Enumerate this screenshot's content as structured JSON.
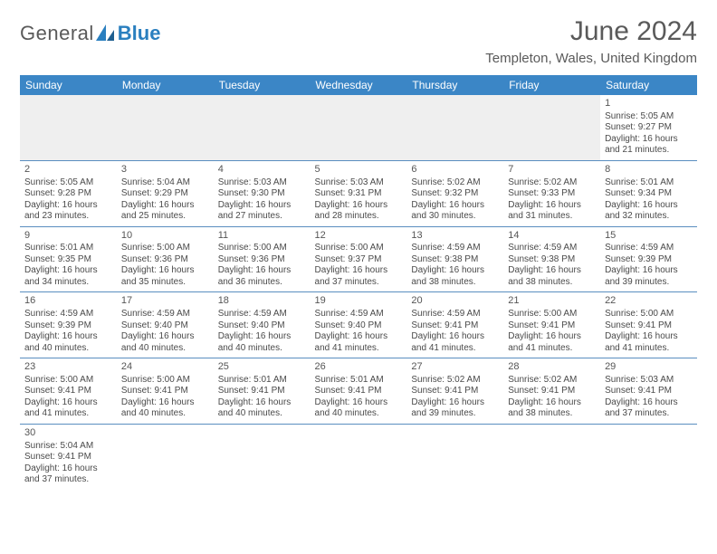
{
  "brand": {
    "part1": "General",
    "part2": "Blue"
  },
  "header": {
    "title": "June 2024",
    "location": "Templeton, Wales, United Kingdom"
  },
  "calendar": {
    "weekdays": [
      "Sunday",
      "Monday",
      "Tuesday",
      "Wednesday",
      "Thursday",
      "Friday",
      "Saturday"
    ],
    "header_bg": "#3b86c6",
    "header_fg": "#ffffff",
    "divider_color": "#5a8ec0",
    "empty_bg": "#efefef",
    "body_font_size": 10,
    "first_weekday_index": 6,
    "days_in_month": 30,
    "days": [
      {
        "n": 1,
        "sunrise": "5:05 AM",
        "sunset": "9:27 PM",
        "daylight": "16 hours and 21 minutes."
      },
      {
        "n": 2,
        "sunrise": "5:05 AM",
        "sunset": "9:28 PM",
        "daylight": "16 hours and 23 minutes."
      },
      {
        "n": 3,
        "sunrise": "5:04 AM",
        "sunset": "9:29 PM",
        "daylight": "16 hours and 25 minutes."
      },
      {
        "n": 4,
        "sunrise": "5:03 AM",
        "sunset": "9:30 PM",
        "daylight": "16 hours and 27 minutes."
      },
      {
        "n": 5,
        "sunrise": "5:03 AM",
        "sunset": "9:31 PM",
        "daylight": "16 hours and 28 minutes."
      },
      {
        "n": 6,
        "sunrise": "5:02 AM",
        "sunset": "9:32 PM",
        "daylight": "16 hours and 30 minutes."
      },
      {
        "n": 7,
        "sunrise": "5:02 AM",
        "sunset": "9:33 PM",
        "daylight": "16 hours and 31 minutes."
      },
      {
        "n": 8,
        "sunrise": "5:01 AM",
        "sunset": "9:34 PM",
        "daylight": "16 hours and 32 minutes."
      },
      {
        "n": 9,
        "sunrise": "5:01 AM",
        "sunset": "9:35 PM",
        "daylight": "16 hours and 34 minutes."
      },
      {
        "n": 10,
        "sunrise": "5:00 AM",
        "sunset": "9:36 PM",
        "daylight": "16 hours and 35 minutes."
      },
      {
        "n": 11,
        "sunrise": "5:00 AM",
        "sunset": "9:36 PM",
        "daylight": "16 hours and 36 minutes."
      },
      {
        "n": 12,
        "sunrise": "5:00 AM",
        "sunset": "9:37 PM",
        "daylight": "16 hours and 37 minutes."
      },
      {
        "n": 13,
        "sunrise": "4:59 AM",
        "sunset": "9:38 PM",
        "daylight": "16 hours and 38 minutes."
      },
      {
        "n": 14,
        "sunrise": "4:59 AM",
        "sunset": "9:38 PM",
        "daylight": "16 hours and 38 minutes."
      },
      {
        "n": 15,
        "sunrise": "4:59 AM",
        "sunset": "9:39 PM",
        "daylight": "16 hours and 39 minutes."
      },
      {
        "n": 16,
        "sunrise": "4:59 AM",
        "sunset": "9:39 PM",
        "daylight": "16 hours and 40 minutes."
      },
      {
        "n": 17,
        "sunrise": "4:59 AM",
        "sunset": "9:40 PM",
        "daylight": "16 hours and 40 minutes."
      },
      {
        "n": 18,
        "sunrise": "4:59 AM",
        "sunset": "9:40 PM",
        "daylight": "16 hours and 40 minutes."
      },
      {
        "n": 19,
        "sunrise": "4:59 AM",
        "sunset": "9:40 PM",
        "daylight": "16 hours and 41 minutes."
      },
      {
        "n": 20,
        "sunrise": "4:59 AM",
        "sunset": "9:41 PM",
        "daylight": "16 hours and 41 minutes."
      },
      {
        "n": 21,
        "sunrise": "5:00 AM",
        "sunset": "9:41 PM",
        "daylight": "16 hours and 41 minutes."
      },
      {
        "n": 22,
        "sunrise": "5:00 AM",
        "sunset": "9:41 PM",
        "daylight": "16 hours and 41 minutes."
      },
      {
        "n": 23,
        "sunrise": "5:00 AM",
        "sunset": "9:41 PM",
        "daylight": "16 hours and 41 minutes."
      },
      {
        "n": 24,
        "sunrise": "5:00 AM",
        "sunset": "9:41 PM",
        "daylight": "16 hours and 40 minutes."
      },
      {
        "n": 25,
        "sunrise": "5:01 AM",
        "sunset": "9:41 PM",
        "daylight": "16 hours and 40 minutes."
      },
      {
        "n": 26,
        "sunrise": "5:01 AM",
        "sunset": "9:41 PM",
        "daylight": "16 hours and 40 minutes."
      },
      {
        "n": 27,
        "sunrise": "5:02 AM",
        "sunset": "9:41 PM",
        "daylight": "16 hours and 39 minutes."
      },
      {
        "n": 28,
        "sunrise": "5:02 AM",
        "sunset": "9:41 PM",
        "daylight": "16 hours and 38 minutes."
      },
      {
        "n": 29,
        "sunrise": "5:03 AM",
        "sunset": "9:41 PM",
        "daylight": "16 hours and 37 minutes."
      },
      {
        "n": 30,
        "sunrise": "5:04 AM",
        "sunset": "9:41 PM",
        "daylight": "16 hours and 37 minutes."
      }
    ],
    "labels": {
      "sunrise": "Sunrise:",
      "sunset": "Sunset:",
      "daylight": "Daylight:"
    }
  }
}
